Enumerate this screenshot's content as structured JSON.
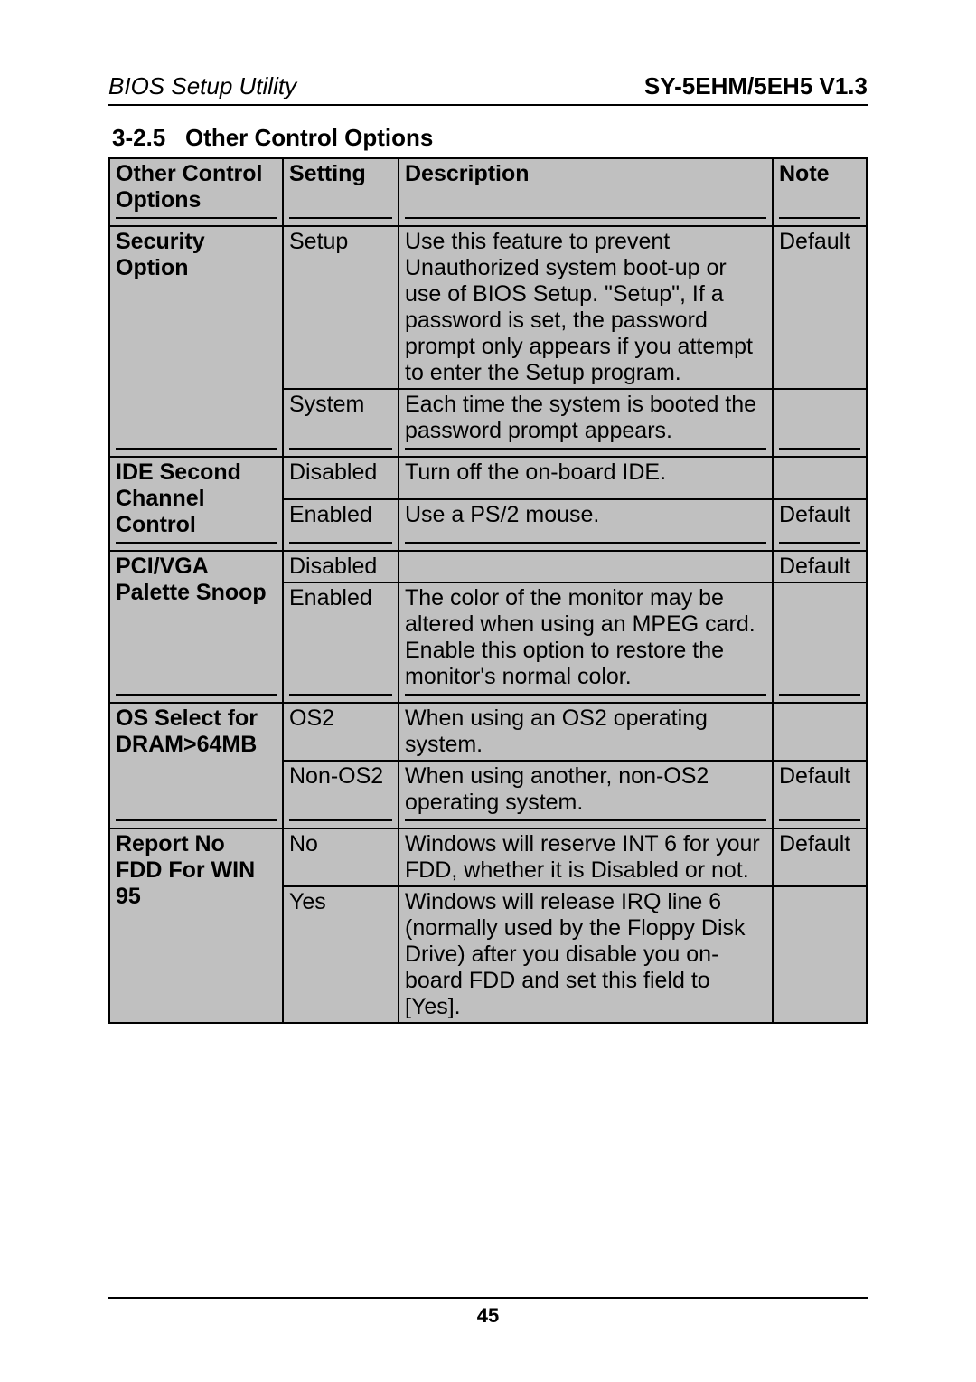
{
  "header": {
    "left": "BIOS Setup Utility",
    "right": "SY-5EHM/5EH5 V1.3"
  },
  "section_number": "3-2.5",
  "section_title": "Other Control Options",
  "columns": {
    "options": "Other Control Options",
    "setting": "Setting",
    "description": "Description",
    "note": "Note"
  },
  "rows": {
    "security": {
      "label": "Security Option",
      "r1": {
        "setting": "Setup",
        "desc": "Use this feature to prevent Unauthorized system boot-up or use of BIOS Setup. \"Setup\", If a password is set, the password prompt only appears if you attempt to enter the Setup program.",
        "note": "Default"
      },
      "r2": {
        "setting": "System",
        "desc": "Each time the system is booted the password prompt appears.",
        "note": ""
      }
    },
    "ide": {
      "label": "IDE Second Channel Control",
      "r1": {
        "setting": "Disabled",
        "desc": "Turn off the on-board IDE.",
        "note": ""
      },
      "r2": {
        "setting": "Enabled",
        "desc": "Use a PS/2 mouse.",
        "note": "Default"
      }
    },
    "pci": {
      "label": "PCI/VGA Palette Snoop",
      "r1": {
        "setting": "Disabled",
        "desc": "",
        "note": "Default"
      },
      "r2": {
        "setting": "Enabled",
        "note": ""
      },
      "span_desc": "The color of the monitor may be altered when using an MPEG card. Enable this option to restore the monitor's normal color."
    },
    "os": {
      "label": "OS Select for DRAM>64MB",
      "r1": {
        "setting": "OS2",
        "desc": "When using an OS2 operating system.",
        "note": ""
      },
      "r2": {
        "setting": "Non-OS2",
        "desc": "When using another, non-OS2 operating system.",
        "note": "Default"
      }
    },
    "fdd": {
      "label": "Report No FDD For WIN 95",
      "r1": {
        "setting": "No",
        "desc": "Windows will reserve INT 6 for your FDD, whether it is Disabled or not.",
        "note": "Default"
      },
      "r2": {
        "setting": "Yes",
        "desc": "Windows will release IRQ line 6 (normally used by the Floppy Disk Drive) after you disable you on-board FDD and set this field to [Yes].",
        "note": ""
      }
    }
  },
  "page_number": "45",
  "colors": {
    "cell_bg": "#c0c0c0",
    "border": "#000000",
    "page_bg": "#ffffff",
    "text": "#000000"
  },
  "typography": {
    "body_fontsize": 25,
    "header_fontsize": 26,
    "section_fontsize": 26,
    "pagenum_fontsize": 22
  }
}
